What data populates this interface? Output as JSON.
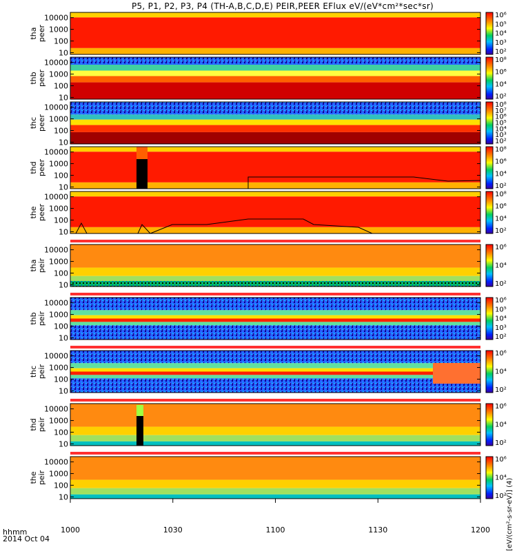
{
  "title": "P5, P1, P2, P3, P4 (TH-A,B,C,D,E) PEIR,PEER EFlux eV/(eV*cm²*sec*sr)",
  "colorbar_title": "[eV/(cm²-s-sr-eV)] (4)",
  "x_axis": {
    "line1": "hhmm",
    "line2": "2014 Oct 04"
  },
  "colors": {
    "red": "#ff0000",
    "orange": "#ff7a00",
    "yellow": "#ffff00",
    "green": "#00d060",
    "blue": "#0050ff",
    "dark_red": "#8b0000"
  },
  "chart_data": {
    "type": "heatmap",
    "x": {
      "label": "hhmm",
      "date": "2014 Oct 04",
      "ticks": [
        "1000",
        "1030",
        "1100",
        "1130",
        "1200"
      ],
      "range": [
        "1000",
        "1200"
      ]
    },
    "y_scale": "log",
    "y_ticks": [
      "10",
      "100",
      "1000",
      "10000"
    ],
    "colorbar_scale": "log",
    "panels": [
      {
        "id": "tha-peer",
        "label": [
          "tha",
          "peer"
        ],
        "dominant": "red",
        "colorbar_ticks": [
          "10⁶",
          "10⁵",
          "10⁴",
          "10³",
          "10²"
        ]
      },
      {
        "id": "thb-peer",
        "label": [
          "thb",
          "peer"
        ],
        "dominant": "red-band",
        "colorbar_ticks": [
          "10⁸",
          "10⁶",
          "10⁴",
          "10²"
        ]
      },
      {
        "id": "thc-peer",
        "label": [
          "thc",
          "peer"
        ],
        "dominant": "red-low",
        "colorbar_ticks": [
          "10⁸",
          "10⁷",
          "10⁶",
          "10⁵",
          "10⁴",
          "10³",
          "10²"
        ]
      },
      {
        "id": "thd-peer",
        "label": [
          "thd",
          "peer"
        ],
        "dominant": "red",
        "colorbar_ticks": [
          "10⁸",
          "10⁶",
          "10⁴",
          "10²"
        ]
      },
      {
        "id": "the-peer",
        "label": [
          "the",
          "peer"
        ],
        "dominant": "red",
        "colorbar_ticks": [
          "10⁸",
          "10⁶",
          "10⁴",
          "10²"
        ]
      },
      {
        "id": "tha-peir",
        "label": [
          "tha",
          "peir"
        ],
        "dominant": "orange",
        "colorbar_ticks": [
          "10⁶",
          "10⁴",
          "10²"
        ]
      },
      {
        "id": "thb-peir",
        "label": [
          "thb",
          "peir"
        ],
        "dominant": "blue-band",
        "colorbar_ticks": [
          "10⁶",
          "10⁵",
          "10⁴",
          "10³",
          "10²"
        ]
      },
      {
        "id": "thc-peir",
        "label": [
          "thc",
          "peir"
        ],
        "dominant": "blue-band",
        "colorbar_ticks": [
          "10⁶",
          "10⁴",
          "10²"
        ]
      },
      {
        "id": "thd-peir",
        "label": [
          "thd",
          "peir"
        ],
        "dominant": "orange",
        "colorbar_ticks": [
          "10⁶",
          "10⁴",
          "10²"
        ]
      },
      {
        "id": "the-peir",
        "label": [
          "the",
          "peir"
        ],
        "dominant": "orange",
        "colorbar_ticks": [
          "10⁶",
          "10⁴",
          "10²"
        ]
      }
    ]
  }
}
